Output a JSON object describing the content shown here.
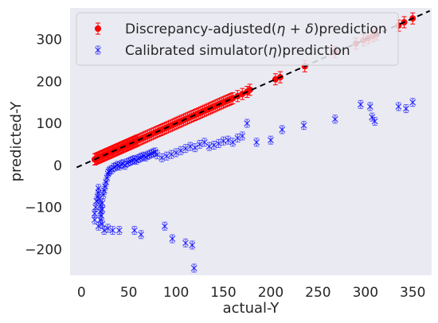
{
  "chart_data": {
    "type": "scatter",
    "xlabel": "actual-Y",
    "ylabel": "predicted-Y",
    "xlim": [
      -12,
      370
    ],
    "ylim": [
      -262,
      375
    ],
    "xticks": [
      0,
      50,
      100,
      150,
      200,
      250,
      300,
      350
    ],
    "yticks": [
      -200,
      -100,
      0,
      100,
      200,
      300
    ],
    "xtick_labels": [
      "0",
      "50",
      "100",
      "150",
      "200",
      "250",
      "300",
      "350"
    ],
    "ytick_labels": [
      "−200",
      "−100",
      "0",
      "100",
      "200",
      "300"
    ],
    "grid": false,
    "legend_position": "top",
    "reference_line": {
      "style": "dashed",
      "color": "#000000",
      "x": [
        -5,
        368
      ],
      "y": [
        -5,
        368
      ]
    },
    "series": [
      {
        "name": "Discrepancy-adjusted(η + δ)prediction",
        "name_parts": [
          "Discrepancy-adjusted(",
          "η",
          " + ",
          "δ",
          ")prediction"
        ],
        "color": "#ff0000",
        "marker": "filled-circle",
        "x": [
          14,
          15,
          16,
          17,
          18,
          19,
          20,
          21,
          22,
          23,
          24,
          25,
          26,
          27,
          28,
          29,
          30,
          31,
          32,
          33,
          34,
          35,
          36,
          37,
          38,
          39,
          40,
          41,
          42,
          43,
          44,
          45,
          46,
          47,
          48,
          49,
          50,
          51,
          52,
          53,
          54,
          55,
          56,
          57,
          58,
          59,
          60,
          62,
          64,
          66,
          68,
          70,
          72,
          74,
          76,
          78,
          80,
          82,
          84,
          86,
          88,
          90,
          92,
          94,
          96,
          98,
          100,
          102,
          104,
          106,
          108,
          110,
          112,
          114,
          116,
          118,
          120,
          122,
          124,
          126,
          128,
          130,
          132,
          134,
          136,
          138,
          140,
          142,
          144,
          146,
          148,
          150,
          152,
          154,
          156,
          158,
          160,
          165,
          170,
          175,
          178,
          205,
          210,
          236,
          268,
          290,
          298,
          303,
          308,
          312,
          335,
          341,
          350
        ],
        "y": [
          14,
          15,
          16,
          17,
          18,
          19,
          20,
          21,
          22,
          23,
          24,
          25,
          26,
          27,
          28,
          29,
          30,
          31,
          32,
          33,
          34,
          35,
          36,
          37,
          38,
          39,
          40,
          41,
          42,
          43,
          44,
          45,
          46,
          47,
          48,
          49,
          50,
          51,
          52,
          53,
          54,
          55,
          56,
          57,
          58,
          59,
          60,
          62,
          64,
          66,
          68,
          70,
          72,
          74,
          76,
          78,
          80,
          82,
          84,
          86,
          88,
          90,
          92,
          94,
          96,
          98,
          100,
          102,
          104,
          106,
          108,
          110,
          112,
          114,
          116,
          118,
          120,
          122,
          124,
          126,
          128,
          130,
          132,
          134,
          136,
          138,
          140,
          142,
          144,
          146,
          148,
          150,
          152,
          154,
          156,
          158,
          160,
          165,
          170,
          175,
          180,
          205,
          210,
          236,
          270,
          290,
          298,
          303,
          308,
          312,
          333,
          341,
          350
        ],
        "error": 5
      },
      {
        "name": "Calibrated simulator(η)prediction",
        "name_parts": [
          "Calibrated simulator(",
          "η",
          ")prediction"
        ],
        "color": "#0000ff",
        "marker": "x",
        "x": [
          14,
          14,
          15,
          16,
          17,
          18,
          18,
          19,
          20,
          20,
          21,
          22,
          22,
          23,
          24,
          25,
          26,
          27,
          28,
          29,
          30,
          32,
          34,
          36,
          38,
          40,
          42,
          44,
          46,
          48,
          50,
          52,
          54,
          56,
          58,
          60,
          62,
          64,
          66,
          68,
          70,
          72,
          74,
          76,
          78,
          80,
          85,
          90,
          95,
          100,
          105,
          110,
          115,
          120,
          125,
          130,
          135,
          140,
          145,
          150,
          155,
          160,
          165,
          170,
          175,
          185,
          200,
          212,
          235,
          268,
          295,
          307,
          310,
          335,
          343,
          350,
          18,
          20,
          22,
          24,
          28,
          33,
          40,
          56,
          63,
          88,
          96,
          110,
          117,
          119,
          305
        ],
        "y": [
          -130,
          -115,
          -100,
          -85,
          -75,
          -65,
          -55,
          -80,
          -95,
          -110,
          -120,
          -105,
          -90,
          -70,
          -60,
          -50,
          -40,
          -30,
          -20,
          -15,
          -12,
          -10,
          -5,
          -3,
          0,
          -2,
          2,
          4,
          0,
          6,
          8,
          10,
          12,
          14,
          12,
          16,
          18,
          20,
          22,
          20,
          24,
          26,
          28,
          30,
          32,
          25,
          18,
          22,
          26,
          30,
          35,
          40,
          45,
          42,
          50,
          55,
          45,
          48,
          52,
          58,
          60,
          55,
          65,
          70,
          100,
          55,
          60,
          85,
          95,
          110,
          145,
          115,
          105,
          140,
          135,
          150,
          -145,
          -130,
          -140,
          -155,
          -150,
          -155,
          -155,
          -155,
          -165,
          -145,
          -175,
          -185,
          -190,
          -245,
          140
        ],
        "error": 5
      }
    ]
  }
}
